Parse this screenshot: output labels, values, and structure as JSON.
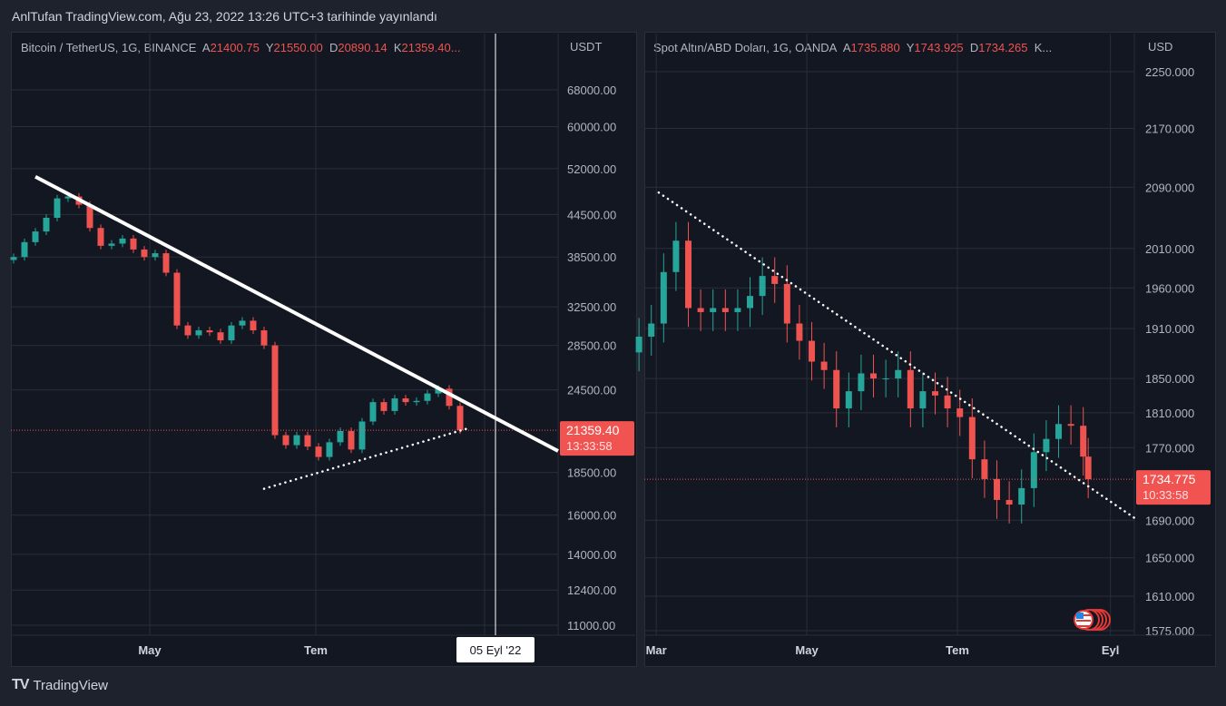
{
  "title": "AnlTufan TradingView.com, Ağu 23, 2022 13:26 UTC+3 tarihinde yayınlandı",
  "footer": {
    "logo": "TradingView",
    "label": "TradingView"
  },
  "colors": {
    "up": "#26a69a",
    "down": "#ef5350",
    "background": "#131722",
    "grid": "#2a2e39",
    "text": "#b2b5be",
    "price_label": "#f05350"
  },
  "icons": {
    "flag": "us-flag-icon",
    "logo": "tradingview-logo-icon"
  },
  "chart_data": [
    {
      "type": "candlestick",
      "symbol": "Bitcoin / TetherUS, 1G, BINANCE",
      "ohlc_legend": {
        "o_label": "A",
        "o": "21400.75",
        "h_label": "Y",
        "h": "21550.00",
        "l_label": "D",
        "l": "20890.14",
        "c_label": "K",
        "c": "21359.40..."
      },
      "currency": "USDT",
      "y_scale": "log",
      "y_ticks": [
        "68000.00",
        "60000.00",
        "52000.00",
        "44500.00",
        "38500.00",
        "32500.00",
        "28500.00",
        "24500.00",
        "18500.00",
        "16000.00",
        "14000.00",
        "12400.00",
        "11000.00"
      ],
      "x_ticks": [
        {
          "label": "May",
          "date": "2022-05-01"
        },
        {
          "label": "Tem",
          "date": "2022-07-01"
        },
        {
          "label": "",
          "date": "2022-09-01"
        }
      ],
      "dates": [
        "2022-03-12",
        "2022-03-16",
        "2022-03-20",
        "2022-03-24",
        "2022-03-28",
        "2022-04-01",
        "2022-04-05",
        "2022-04-09",
        "2022-04-13",
        "2022-04-17",
        "2022-04-21",
        "2022-04-25",
        "2022-04-29",
        "2022-05-03",
        "2022-05-07",
        "2022-05-11",
        "2022-05-15",
        "2022-05-19",
        "2022-05-23",
        "2022-05-27",
        "2022-05-31",
        "2022-06-04",
        "2022-06-08",
        "2022-06-12",
        "2022-06-16",
        "2022-06-20",
        "2022-06-24",
        "2022-06-28",
        "2022-07-02",
        "2022-07-06",
        "2022-07-10",
        "2022-07-14",
        "2022-07-18",
        "2022-07-22",
        "2022-07-26",
        "2022-07-30",
        "2022-08-03",
        "2022-08-07",
        "2022-08-11",
        "2022-08-15",
        "2022-08-19",
        "2022-08-23"
      ],
      "close": [
        38500,
        40500,
        42000,
        44000,
        47000,
        47300,
        46000,
        42500,
        40000,
        40300,
        41000,
        39500,
        38500,
        39000,
        36500,
        30500,
        29500,
        30000,
        29800,
        29000,
        30500,
        31000,
        30000,
        28500,
        21000,
        20300,
        21000,
        20200,
        19500,
        20500,
        21300,
        20000,
        22000,
        23500,
        22800,
        23800,
        23500,
        23600,
        24200,
        24600,
        23200,
        21359.4
      ],
      "last_price": "21359.40",
      "countdown": "13:33:58",
      "crosshair": {
        "date": "2022-09-05",
        "label": "05 Eyl '22"
      },
      "trendlines": [
        {
          "style": "solid",
          "from": [
            "2022-03-20",
            50600
          ],
          "to": [
            "2022-09-28",
            19900
          ]
        },
        {
          "style": "dotted",
          "from": [
            "2022-06-12",
            17500
          ],
          "to": [
            "2022-08-26",
            21500
          ]
        }
      ]
    },
    {
      "type": "candlestick",
      "symbol": "Spot Altın/ABD Doları, 1G, OANDA",
      "ohlc_legend": {
        "o_label": "A",
        "o": "1735.880",
        "h_label": "Y",
        "h": "1743.925",
        "l_label": "D",
        "l": "1734.265",
        "c_label": "K...",
        "c": ""
      },
      "currency": "USD",
      "y_scale": "log",
      "y_ticks": [
        "2250.000",
        "2170.000",
        "2090.000",
        "2010.000",
        "1960.000",
        "1910.000",
        "1850.000",
        "1810.000",
        "1770.000",
        "1690.000",
        "1650.000",
        "1610.000",
        "1575.000"
      ],
      "x_ticks": [
        {
          "label": "Mar",
          "date": "2022-03-01"
        },
        {
          "label": "May",
          "date": "2022-05-01"
        },
        {
          "label": "Tem",
          "date": "2022-07-01"
        },
        {
          "label": "Eyl",
          "date": "2022-09-01"
        }
      ],
      "dates": [
        "2022-02-22",
        "2022-02-27",
        "2022-03-04",
        "2022-03-09",
        "2022-03-14",
        "2022-03-19",
        "2022-03-24",
        "2022-03-29",
        "2022-04-03",
        "2022-04-08",
        "2022-04-13",
        "2022-04-18",
        "2022-04-23",
        "2022-04-28",
        "2022-05-03",
        "2022-05-08",
        "2022-05-13",
        "2022-05-18",
        "2022-05-23",
        "2022-05-28",
        "2022-06-02",
        "2022-06-07",
        "2022-06-12",
        "2022-06-17",
        "2022-06-22",
        "2022-06-27",
        "2022-07-02",
        "2022-07-07",
        "2022-07-12",
        "2022-07-17",
        "2022-07-22",
        "2022-07-27",
        "2022-08-01",
        "2022-08-06",
        "2022-08-11",
        "2022-08-16",
        "2022-08-21",
        "2022-08-23"
      ],
      "close": [
        1900,
        1916,
        1980,
        2020,
        1935,
        1930,
        1935,
        1930,
        1935,
        1950,
        1975,
        1965,
        1916,
        1895,
        1870,
        1860,
        1815,
        1835,
        1856,
        1850,
        1850,
        1860,
        1815,
        1835,
        1830,
        1815,
        1805,
        1757,
        1735,
        1712,
        1707,
        1725,
        1765,
        1780,
        1797,
        1795,
        1760,
        1734.775
      ],
      "last_price": "1734.775",
      "countdown": "10:33:58",
      "trendlines": [
        {
          "style": "dotted",
          "from": [
            "2022-03-02",
            2083
          ],
          "to": [
            "2022-09-11",
            1692
          ]
        }
      ]
    }
  ]
}
